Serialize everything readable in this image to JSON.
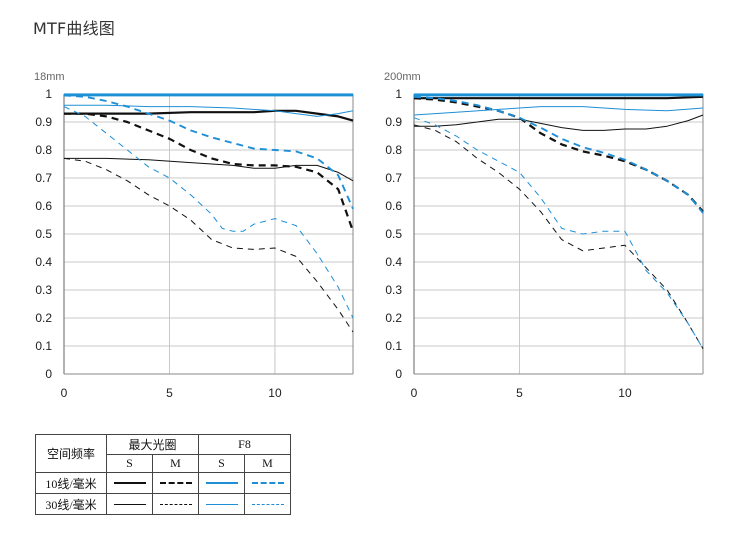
{
  "title": "MTF曲线图",
  "legend": {
    "row_header": "空间频率",
    "group_max_aperture": "最大光圈",
    "group_f8": "F8",
    "sub_s": "S",
    "sub_m": "M",
    "row_10": "10线/毫米",
    "row_30": "30线/毫米"
  },
  "colors": {
    "max_aperture": "#111111",
    "f8": "#1e8fd6",
    "grid": "#c8c8c8",
    "frame": "#1f9ad6"
  },
  "chart_data": [
    {
      "type": "line",
      "title": "18mm",
      "xlim": [
        0,
        13.7
      ],
      "ylim": [
        0,
        1
      ],
      "xticks": [
        0,
        5,
        10
      ],
      "yticks": [
        0,
        0.1,
        0.2,
        0.3,
        0.4,
        0.5,
        0.6,
        0.7,
        0.8,
        0.9,
        1
      ],
      "ytick_labels": [
        "0",
        "0.1",
        "0.2",
        "0.3",
        "0.4",
        "0.5",
        "0.6",
        "0.7",
        "0.8",
        "0.9",
        "1"
      ],
      "series": [
        {
          "group": "max_aperture",
          "freq": 10,
          "kind": "S",
          "x": [
            0,
            2,
            4,
            6,
            8,
            9,
            10,
            11,
            12,
            13,
            13.7
          ],
          "y": [
            0.93,
            0.93,
            0.93,
            0.935,
            0.935,
            0.935,
            0.94,
            0.94,
            0.93,
            0.92,
            0.905
          ]
        },
        {
          "group": "max_aperture",
          "freq": 10,
          "kind": "M",
          "x": [
            0,
            1,
            2,
            3,
            4,
            5,
            6,
            7,
            8,
            9,
            10,
            11,
            12,
            13,
            13.7
          ],
          "y": [
            0.93,
            0.93,
            0.92,
            0.9,
            0.87,
            0.84,
            0.8,
            0.77,
            0.75,
            0.745,
            0.745,
            0.74,
            0.72,
            0.66,
            0.51
          ]
        },
        {
          "group": "max_aperture",
          "freq": 30,
          "kind": "S",
          "x": [
            0,
            2,
            4,
            6,
            8,
            9,
            10,
            11,
            12,
            13,
            13.7
          ],
          "y": [
            0.77,
            0.77,
            0.765,
            0.755,
            0.745,
            0.735,
            0.735,
            0.745,
            0.745,
            0.72,
            0.69
          ]
        },
        {
          "group": "max_aperture",
          "freq": 30,
          "kind": "M",
          "x": [
            0,
            1,
            2,
            3,
            4,
            5,
            6,
            7,
            8,
            9,
            10,
            11,
            12,
            13,
            13.7
          ],
          "y": [
            0.77,
            0.76,
            0.73,
            0.69,
            0.64,
            0.6,
            0.55,
            0.48,
            0.45,
            0.445,
            0.45,
            0.42,
            0.33,
            0.23,
            0.15
          ]
        },
        {
          "group": "f8",
          "freq": 10,
          "kind": "S",
          "x": [
            0,
            2,
            4,
            6,
            8,
            10,
            12,
            13.7
          ],
          "y": [
            0.995,
            0.995,
            0.995,
            0.995,
            0.995,
            0.995,
            0.995,
            0.995
          ]
        },
        {
          "group": "f8",
          "freq": 10,
          "kind": "M",
          "x": [
            0,
            1,
            2,
            3,
            4,
            5,
            6,
            7,
            8,
            9,
            10,
            11,
            12,
            13,
            13.7
          ],
          "y": [
            0.995,
            0.99,
            0.975,
            0.955,
            0.93,
            0.905,
            0.87,
            0.845,
            0.825,
            0.805,
            0.8,
            0.795,
            0.77,
            0.71,
            0.59
          ]
        },
        {
          "group": "f8",
          "freq": 30,
          "kind": "S",
          "x": [
            0,
            2,
            4,
            6,
            8,
            10,
            11,
            12,
            13,
            13.7
          ],
          "y": [
            0.96,
            0.96,
            0.955,
            0.955,
            0.95,
            0.94,
            0.93,
            0.92,
            0.93,
            0.94
          ]
        },
        {
          "group": "f8",
          "freq": 30,
          "kind": "M",
          "x": [
            0,
            1,
            2,
            3,
            4,
            5,
            6,
            7,
            7.5,
            8,
            8.5,
            9,
            10,
            11,
            12,
            13,
            13.7
          ],
          "y": [
            0.955,
            0.92,
            0.86,
            0.8,
            0.74,
            0.7,
            0.64,
            0.57,
            0.52,
            0.51,
            0.51,
            0.535,
            0.555,
            0.53,
            0.43,
            0.31,
            0.2
          ]
        }
      ]
    },
    {
      "type": "line",
      "title": "200mm",
      "xlim": [
        0,
        13.7
      ],
      "ylim": [
        0,
        1
      ],
      "xticks": [
        0,
        5,
        10
      ],
      "yticks": [
        0,
        0.1,
        0.2,
        0.3,
        0.4,
        0.5,
        0.6,
        0.7,
        0.8,
        0.9,
        1
      ],
      "ytick_labels": [
        "0",
        "0.1",
        "0.2",
        "0.3",
        "0.4",
        "0.5",
        "0.6",
        "0.7",
        "0.8",
        "0.9",
        "1"
      ],
      "series": [
        {
          "group": "max_aperture",
          "freq": 10,
          "kind": "S",
          "x": [
            0,
            2,
            4,
            6,
            8,
            10,
            12,
            13.7
          ],
          "y": [
            0.985,
            0.985,
            0.985,
            0.985,
            0.985,
            0.985,
            0.985,
            0.99
          ]
        },
        {
          "group": "max_aperture",
          "freq": 10,
          "kind": "M",
          "x": [
            0,
            1,
            2,
            3,
            4,
            5,
            6,
            7,
            8,
            9,
            10,
            11,
            12,
            13,
            13.7
          ],
          "y": [
            0.985,
            0.98,
            0.97,
            0.955,
            0.94,
            0.915,
            0.86,
            0.82,
            0.795,
            0.78,
            0.76,
            0.73,
            0.69,
            0.64,
            0.58
          ]
        },
        {
          "group": "max_aperture",
          "freq": 30,
          "kind": "S",
          "x": [
            0,
            1,
            2,
            3,
            4,
            5,
            6,
            7,
            8,
            9,
            10,
            11,
            12,
            13,
            13.7
          ],
          "y": [
            0.885,
            0.885,
            0.89,
            0.9,
            0.91,
            0.91,
            0.895,
            0.88,
            0.87,
            0.87,
            0.875,
            0.875,
            0.885,
            0.905,
            0.925
          ]
        },
        {
          "group": "max_aperture",
          "freq": 30,
          "kind": "M",
          "x": [
            0,
            1,
            2,
            3,
            4,
            5,
            6,
            7,
            8,
            9,
            10,
            11,
            12,
            13,
            13.7
          ],
          "y": [
            0.89,
            0.87,
            0.83,
            0.77,
            0.72,
            0.66,
            0.58,
            0.48,
            0.44,
            0.45,
            0.46,
            0.38,
            0.3,
            0.18,
            0.09
          ]
        },
        {
          "group": "f8",
          "freq": 10,
          "kind": "S",
          "x": [
            0,
            2,
            4,
            6,
            8,
            10,
            12,
            13.7
          ],
          "y": [
            0.995,
            0.995,
            0.995,
            0.995,
            0.995,
            0.995,
            0.995,
            0.995
          ]
        },
        {
          "group": "f8",
          "freq": 10,
          "kind": "M",
          "x": [
            0,
            1,
            2,
            3,
            4,
            5,
            6,
            7,
            8,
            9,
            10,
            11,
            12,
            13,
            13.7
          ],
          "y": [
            0.99,
            0.985,
            0.975,
            0.96,
            0.94,
            0.915,
            0.88,
            0.84,
            0.81,
            0.79,
            0.765,
            0.73,
            0.69,
            0.64,
            0.575
          ]
        },
        {
          "group": "f8",
          "freq": 30,
          "kind": "S",
          "x": [
            0,
            2,
            4,
            5,
            6,
            8,
            10,
            12,
            13.7
          ],
          "y": [
            0.925,
            0.935,
            0.945,
            0.95,
            0.955,
            0.955,
            0.945,
            0.94,
            0.95
          ]
        },
        {
          "group": "f8",
          "freq": 30,
          "kind": "M",
          "x": [
            0,
            1,
            2,
            3,
            4,
            5,
            6,
            7,
            8,
            9,
            10,
            11,
            12,
            13,
            13.7
          ],
          "y": [
            0.915,
            0.89,
            0.85,
            0.8,
            0.76,
            0.72,
            0.63,
            0.52,
            0.5,
            0.51,
            0.51,
            0.37,
            0.29,
            0.18,
            0.09
          ]
        }
      ]
    }
  ]
}
